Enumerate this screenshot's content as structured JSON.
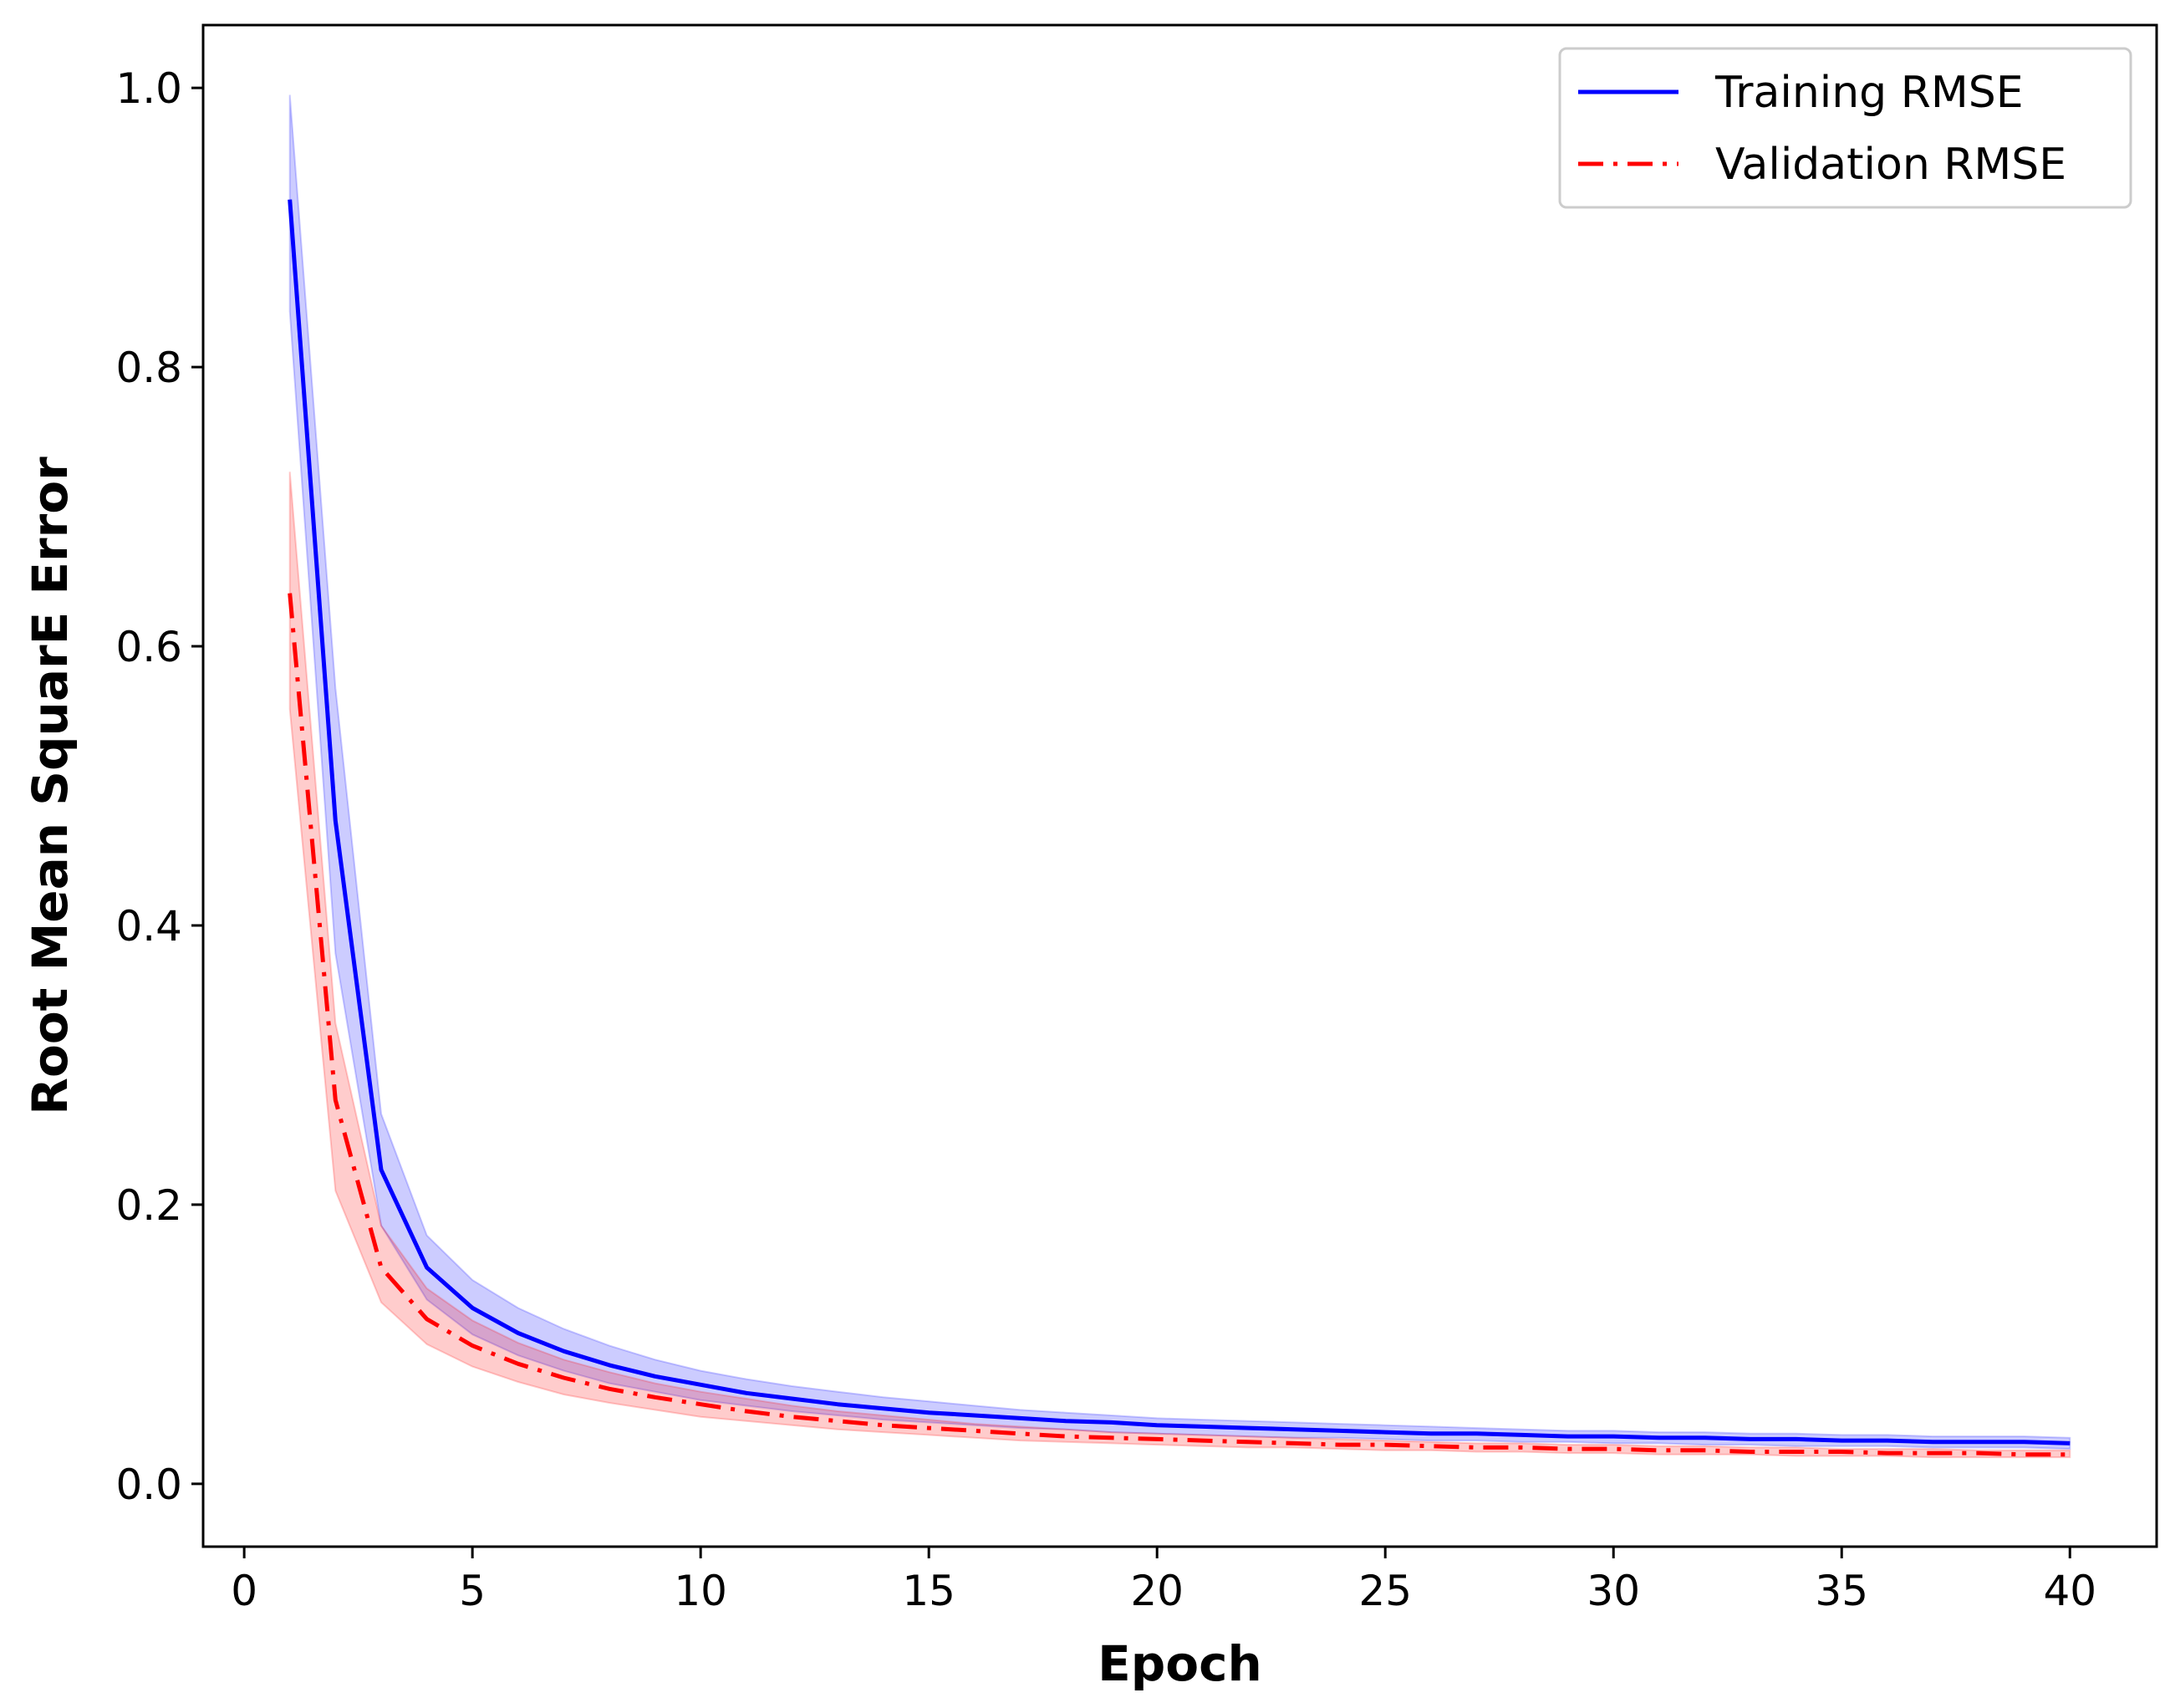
{
  "chart_data": {
    "type": "line",
    "xlabel": "Epoch",
    "ylabel": "Root Mean SquarE Error",
    "xlim": [
      -0.9,
      41.9
    ],
    "ylim": [
      -0.045,
      1.045
    ],
    "xticks": [
      0,
      5,
      10,
      15,
      20,
      25,
      30,
      35,
      40
    ],
    "xtick_labels": [
      "0",
      "5",
      "10",
      "15",
      "20",
      "25",
      "30",
      "35",
      "40"
    ],
    "yticks": [
      0.0,
      0.2,
      0.4,
      0.6,
      0.8,
      1.0
    ],
    "ytick_labels": [
      "0.0",
      "0.2",
      "0.4",
      "0.6",
      "0.8",
      "1.0"
    ],
    "grid": false,
    "legend_position": "top-right",
    "x": [
      1,
      2,
      3,
      4,
      5,
      6,
      7,
      8,
      9,
      10,
      11,
      12,
      13,
      14,
      15,
      16,
      17,
      18,
      19,
      20,
      21,
      22,
      23,
      24,
      25,
      26,
      27,
      28,
      29,
      30,
      31,
      32,
      33,
      34,
      35,
      36,
      37,
      38,
      39,
      40
    ],
    "series": [
      {
        "name": "Training RMSE",
        "color": "#0000ff",
        "line_style": "solid",
        "band_color": "#0000ff",
        "values": [
          0.92,
          0.475,
          0.225,
          0.155,
          0.126,
          0.108,
          0.095,
          0.085,
          0.077,
          0.071,
          0.065,
          0.061,
          0.057,
          0.054,
          0.051,
          0.049,
          0.047,
          0.045,
          0.044,
          0.042,
          0.041,
          0.04,
          0.039,
          0.038,
          0.037,
          0.036,
          0.036,
          0.035,
          0.034,
          0.034,
          0.033,
          0.033,
          0.032,
          0.032,
          0.031,
          0.031,
          0.03,
          0.03,
          0.03,
          0.029
        ],
        "lower": [
          0.84,
          0.38,
          0.185,
          0.132,
          0.107,
          0.092,
          0.081,
          0.072,
          0.066,
          0.06,
          0.056,
          0.052,
          0.049,
          0.046,
          0.044,
          0.042,
          0.04,
          0.039,
          0.037,
          0.036,
          0.035,
          0.034,
          0.033,
          0.033,
          0.032,
          0.031,
          0.031,
          0.03,
          0.03,
          0.029,
          0.029,
          0.028,
          0.028,
          0.027,
          0.027,
          0.027,
          0.026,
          0.026,
          0.026,
          0.025
        ],
        "upper": [
          0.995,
          0.57,
          0.265,
          0.178,
          0.146,
          0.126,
          0.111,
          0.099,
          0.089,
          0.081,
          0.075,
          0.07,
          0.066,
          0.062,
          0.059,
          0.056,
          0.053,
          0.051,
          0.049,
          0.047,
          0.046,
          0.045,
          0.044,
          0.043,
          0.042,
          0.041,
          0.04,
          0.039,
          0.038,
          0.038,
          0.037,
          0.037,
          0.036,
          0.036,
          0.035,
          0.035,
          0.034,
          0.034,
          0.034,
          0.033
        ]
      },
      {
        "name": "Validation RMSE",
        "color": "#ff0000",
        "line_style": "dashdot",
        "band_color": "#ff0000",
        "values": [
          0.638,
          0.275,
          0.155,
          0.118,
          0.099,
          0.086,
          0.076,
          0.068,
          0.062,
          0.057,
          0.052,
          0.048,
          0.045,
          0.042,
          0.04,
          0.038,
          0.036,
          0.034,
          0.033,
          0.032,
          0.031,
          0.03,
          0.029,
          0.028,
          0.028,
          0.027,
          0.026,
          0.026,
          0.025,
          0.025,
          0.024,
          0.024,
          0.023,
          0.023,
          0.023,
          0.022,
          0.022,
          0.022,
          0.021,
          0.021
        ],
        "lower": [
          0.555,
          0.21,
          0.13,
          0.1,
          0.084,
          0.073,
          0.064,
          0.058,
          0.053,
          0.048,
          0.045,
          0.042,
          0.039,
          0.037,
          0.035,
          0.033,
          0.031,
          0.03,
          0.029,
          0.028,
          0.027,
          0.026,
          0.026,
          0.025,
          0.024,
          0.024,
          0.023,
          0.023,
          0.022,
          0.022,
          0.021,
          0.021,
          0.021,
          0.02,
          0.02,
          0.02,
          0.019,
          0.019,
          0.019,
          0.019
        ],
        "upper": [
          0.725,
          0.33,
          0.185,
          0.14,
          0.117,
          0.101,
          0.089,
          0.08,
          0.072,
          0.066,
          0.061,
          0.056,
          0.052,
          0.049,
          0.046,
          0.043,
          0.041,
          0.039,
          0.037,
          0.036,
          0.035,
          0.034,
          0.033,
          0.032,
          0.031,
          0.03,
          0.029,
          0.029,
          0.028,
          0.028,
          0.027,
          0.027,
          0.026,
          0.026,
          0.025,
          0.025,
          0.025,
          0.024,
          0.024,
          0.024
        ]
      }
    ]
  }
}
